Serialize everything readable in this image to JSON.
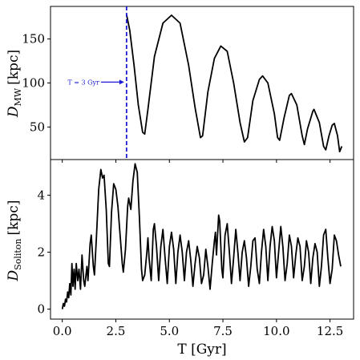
{
  "chart_data": [
    {
      "type": "line",
      "xlabel_math": "T [Gyr]",
      "ylabel_main": "D",
      "ylabel_sub": "MW",
      "ylabel_unit": "[kpc]",
      "xlim": [
        -0.55,
        13.6
      ],
      "ylim": [
        13,
        187
      ],
      "yticks": [
        50,
        100,
        150
      ],
      "xticks": [
        0.0,
        2.5,
        5.0,
        7.5,
        10.0,
        12.5
      ],
      "vline": {
        "x": 3.0,
        "color": "#1a1ad6"
      },
      "annotation": {
        "text": "T = 3 Gyr",
        "x": 3.0,
        "y": 101
      },
      "series": [
        {
          "color": "#000000",
          "points": [
            [
              3.0,
              178
            ],
            [
              3.15,
              160
            ],
            [
              3.35,
              120
            ],
            [
              3.55,
              75
            ],
            [
              3.75,
              44
            ],
            [
              3.85,
              42
            ],
            [
              4.0,
              70
            ],
            [
              4.3,
              130
            ],
            [
              4.7,
              168
            ],
            [
              5.1,
              177
            ],
            [
              5.5,
              168
            ],
            [
              5.9,
              120
            ],
            [
              6.2,
              72
            ],
            [
              6.45,
              38
            ],
            [
              6.55,
              40
            ],
            [
              6.8,
              90
            ],
            [
              7.1,
              128
            ],
            [
              7.4,
              142
            ],
            [
              7.7,
              136
            ],
            [
              8.0,
              100
            ],
            [
              8.3,
              55
            ],
            [
              8.5,
              33
            ],
            [
              8.65,
              38
            ],
            [
              8.9,
              80
            ],
            [
              9.2,
              104
            ],
            [
              9.35,
              108
            ],
            [
              9.6,
              100
            ],
            [
              9.9,
              65
            ],
            [
              10.05,
              38
            ],
            [
              10.15,
              35
            ],
            [
              10.35,
              60
            ],
            [
              10.6,
              86
            ],
            [
              10.7,
              88
            ],
            [
              10.95,
              75
            ],
            [
              11.2,
              40
            ],
            [
              11.3,
              30
            ],
            [
              11.45,
              48
            ],
            [
              11.7,
              68
            ],
            [
              11.75,
              70
            ],
            [
              12.0,
              55
            ],
            [
              12.2,
              28
            ],
            [
              12.3,
              24
            ],
            [
              12.45,
              40
            ],
            [
              12.6,
              52
            ],
            [
              12.7,
              54
            ],
            [
              12.85,
              40
            ],
            [
              12.95,
              22
            ],
            [
              13.05,
              28
            ]
          ]
        }
      ]
    },
    {
      "type": "line",
      "xlabel_math": "T [Gyr]",
      "ylabel_main": "D",
      "ylabel_sub": "Soliton",
      "ylabel_unit": "[kpc]",
      "xlim": [
        -0.55,
        13.6
      ],
      "ylim": [
        -0.35,
        5.25
      ],
      "yticks": [
        0,
        2,
        4
      ],
      "xticks": [
        0.0,
        2.5,
        5.0,
        7.5,
        10.0,
        12.5
      ],
      "xtick_labels": [
        "0.0",
        "2.5",
        "5.0",
        "7.5",
        "10.0",
        "12.5"
      ],
      "series": [
        {
          "color": "#000000",
          "points": [
            [
              0.0,
              0.0
            ],
            [
              0.05,
              0.2
            ],
            [
              0.1,
              0.1
            ],
            [
              0.15,
              0.35
            ],
            [
              0.2,
              0.25
            ],
            [
              0.25,
              0.6
            ],
            [
              0.3,
              0.4
            ],
            [
              0.35,
              0.9
            ],
            [
              0.4,
              0.5
            ],
            [
              0.45,
              1.6
            ],
            [
              0.5,
              0.8
            ],
            [
              0.55,
              1.4
            ],
            [
              0.6,
              0.7
            ],
            [
              0.65,
              1.6
            ],
            [
              0.72,
              1.0
            ],
            [
              0.78,
              1.4
            ],
            [
              0.85,
              0.7
            ],
            [
              0.92,
              1.9
            ],
            [
              1.0,
              1.0
            ],
            [
              1.05,
              0.8
            ],
            [
              1.15,
              1.5
            ],
            [
              1.2,
              1.0
            ],
            [
              1.3,
              2.3
            ],
            [
              1.35,
              2.6
            ],
            [
              1.45,
              1.5
            ],
            [
              1.5,
              1.2
            ],
            [
              1.6,
              2.6
            ],
            [
              1.7,
              4.2
            ],
            [
              1.8,
              4.9
            ],
            [
              1.88,
              4.6
            ],
            [
              1.95,
              4.7
            ],
            [
              2.05,
              3.5
            ],
            [
              2.15,
              1.6
            ],
            [
              2.2,
              1.5
            ],
            [
              2.3,
              3.4
            ],
            [
              2.4,
              4.4
            ],
            [
              2.5,
              4.2
            ],
            [
              2.6,
              3.6
            ],
            [
              2.7,
              2.6
            ],
            [
              2.8,
              1.6
            ],
            [
              2.85,
              1.3
            ],
            [
              2.95,
              2.1
            ],
            [
              3.05,
              3.6
            ],
            [
              3.1,
              3.9
            ],
            [
              3.2,
              3.5
            ],
            [
              3.3,
              4.5
            ],
            [
              3.4,
              5.1
            ],
            [
              3.5,
              4.8
            ],
            [
              3.6,
              3.2
            ],
            [
              3.7,
              1.4
            ],
            [
              3.75,
              1.0
            ],
            [
              3.85,
              1.2
            ],
            [
              3.95,
              2.0
            ],
            [
              4.0,
              2.5
            ],
            [
              4.05,
              1.8
            ],
            [
              4.15,
              1.0
            ],
            [
              4.25,
              2.8
            ],
            [
              4.3,
              3.0
            ],
            [
              4.4,
              2.2
            ],
            [
              4.5,
              1.0
            ],
            [
              4.6,
              2.2
            ],
            [
              4.7,
              2.8
            ],
            [
              4.8,
              1.8
            ],
            [
              4.9,
              0.9
            ],
            [
              5.0,
              2.2
            ],
            [
              5.1,
              2.7
            ],
            [
              5.2,
              2.1
            ],
            [
              5.3,
              0.9
            ],
            [
              5.4,
              2.0
            ],
            [
              5.5,
              2.6
            ],
            [
              5.6,
              2.0
            ],
            [
              5.7,
              1.0
            ],
            [
              5.8,
              2.0
            ],
            [
              5.9,
              2.4
            ],
            [
              6.0,
              1.7
            ],
            [
              6.1,
              0.8
            ],
            [
              6.2,
              1.6
            ],
            [
              6.3,
              2.2
            ],
            [
              6.4,
              1.8
            ],
            [
              6.5,
              0.9
            ],
            [
              6.6,
              1.2
            ],
            [
              6.7,
              2.1
            ],
            [
              6.8,
              1.5
            ],
            [
              6.9,
              0.7
            ],
            [
              7.0,
              1.6
            ],
            [
              7.1,
              2.4
            ],
            [
              7.15,
              2.7
            ],
            [
              7.2,
              1.9
            ],
            [
              7.3,
              3.3
            ],
            [
              7.35,
              3.1
            ],
            [
              7.45,
              1.4
            ],
            [
              7.5,
              1.1
            ],
            [
              7.6,
              2.6
            ],
            [
              7.7,
              3.0
            ],
            [
              7.8,
              2.0
            ],
            [
              7.9,
              0.9
            ],
            [
              8.0,
              1.8
            ],
            [
              8.1,
              2.8
            ],
            [
              8.2,
              2.0
            ],
            [
              8.3,
              1.0
            ],
            [
              8.4,
              2.0
            ],
            [
              8.5,
              2.4
            ],
            [
              8.6,
              1.8
            ],
            [
              8.7,
              0.8
            ],
            [
              8.8,
              1.5
            ],
            [
              8.9,
              2.4
            ],
            [
              9.0,
              2.5
            ],
            [
              9.1,
              1.4
            ],
            [
              9.2,
              0.9
            ],
            [
              9.3,
              2.0
            ],
            [
              9.4,
              2.8
            ],
            [
              9.5,
              2.2
            ],
            [
              9.6,
              1.0
            ],
            [
              9.7,
              2.2
            ],
            [
              9.8,
              2.9
            ],
            [
              9.9,
              2.4
            ],
            [
              10.0,
              1.1
            ],
            [
              10.1,
              2.0
            ],
            [
              10.2,
              2.9
            ],
            [
              10.3,
              2.2
            ],
            [
              10.4,
              1.0
            ],
            [
              10.5,
              1.6
            ],
            [
              10.6,
              2.6
            ],
            [
              10.7,
              2.2
            ],
            [
              10.8,
              1.1
            ],
            [
              10.9,
              1.9
            ],
            [
              11.0,
              2.5
            ],
            [
              11.1,
              2.2
            ],
            [
              11.2,
              1.0
            ],
            [
              11.3,
              1.5
            ],
            [
              11.4,
              2.4
            ],
            [
              11.5,
              2.0
            ],
            [
              11.6,
              0.9
            ],
            [
              11.7,
              1.8
            ],
            [
              11.8,
              2.3
            ],
            [
              11.9,
              2.0
            ],
            [
              12.0,
              0.8
            ],
            [
              12.1,
              1.5
            ],
            [
              12.2,
              2.6
            ],
            [
              12.3,
              2.8
            ],
            [
              12.4,
              1.8
            ],
            [
              12.5,
              0.9
            ],
            [
              12.6,
              1.4
            ],
            [
              12.7,
              2.6
            ],
            [
              12.8,
              2.4
            ],
            [
              12.9,
              1.9
            ],
            [
              13.0,
              1.5
            ]
          ]
        }
      ]
    }
  ]
}
